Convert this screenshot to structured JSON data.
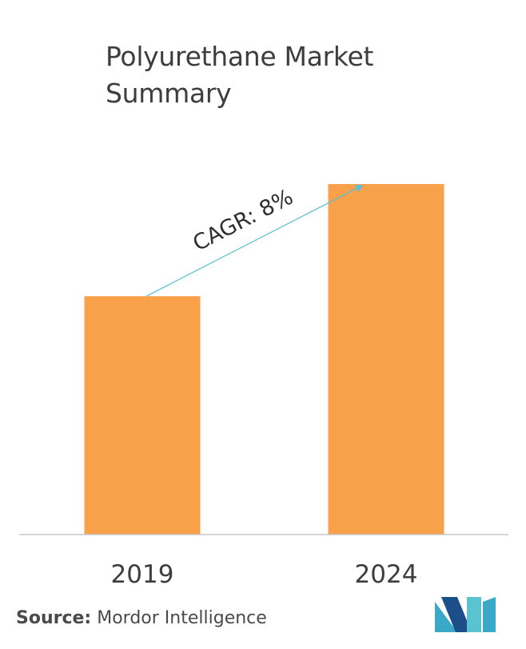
{
  "title": "Polyurethane Market Summary",
  "title_line1": "Polyurethane Market",
  "title_line2": "Summary",
  "source_label": "Source:",
  "source_text": "Mordor Intelligence",
  "chart_data": {
    "type": "bar",
    "categories": [
      "2019",
      "2024"
    ],
    "values": [
      68,
      100
    ],
    "annotation": "CAGR: 8%",
    "xlabel": "",
    "ylabel": "",
    "ylim": [
      0,
      100
    ],
    "grid": false,
    "legend": "none",
    "bar_color": "#f9a04a",
    "arrow_color": "#5bbfd6",
    "axis_color": "#c8c8c8"
  },
  "logo": {
    "icon": "mordor-intelligence-logo",
    "colors": [
      "#3aa9c8",
      "#1c4f8a",
      "#59c3cf"
    ]
  }
}
